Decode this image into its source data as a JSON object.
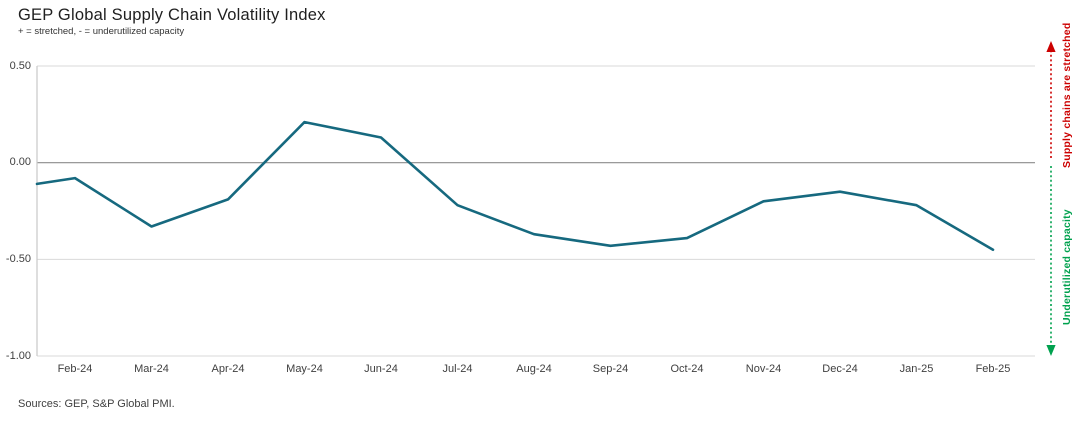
{
  "header": {
    "title": "GEP Global Supply Chain Volatility Index",
    "subtitle": "+ = stretched, - = underutilized capacity"
  },
  "chart_data": {
    "type": "line",
    "title": "GEP Global Supply Chain Volatility Index",
    "categories": [
      "Feb-24",
      "Mar-24",
      "Apr-24",
      "May-24",
      "Jun-24",
      "Jul-24",
      "Aug-24",
      "Sep-24",
      "Oct-24",
      "Nov-24",
      "Dec-24",
      "Jan-25",
      "Feb-25"
    ],
    "values": [
      -0.08,
      -0.33,
      -0.19,
      0.21,
      0.13,
      -0.22,
      -0.37,
      -0.43,
      -0.39,
      -0.2,
      -0.15,
      -0.22,
      -0.45
    ],
    "left_edge_value": -0.11,
    "ylim": [
      -1.0,
      0.5
    ],
    "yticks": [
      0.5,
      0.0,
      -0.5,
      -1.0
    ],
    "ytick_labels": [
      "0.50",
      "0.00",
      "-0.50",
      "-1.00"
    ],
    "zero_line_value": 0,
    "grid": "horizontal",
    "legend": "none",
    "line_color": "#16697f",
    "gridline_color": "#d9d9d9",
    "zero_line_color": "#8c8c8c",
    "axis_line_color": "#c9c9c9"
  },
  "annotations": {
    "stretched_label": "Supply chains are stretched",
    "stretched_color": "#cc0000",
    "underutilized_label": "Underutilized capacity",
    "underutilized_color": "#00a14e"
  },
  "footer": {
    "sources": "Sources: GEP, S&P Global PMI."
  }
}
